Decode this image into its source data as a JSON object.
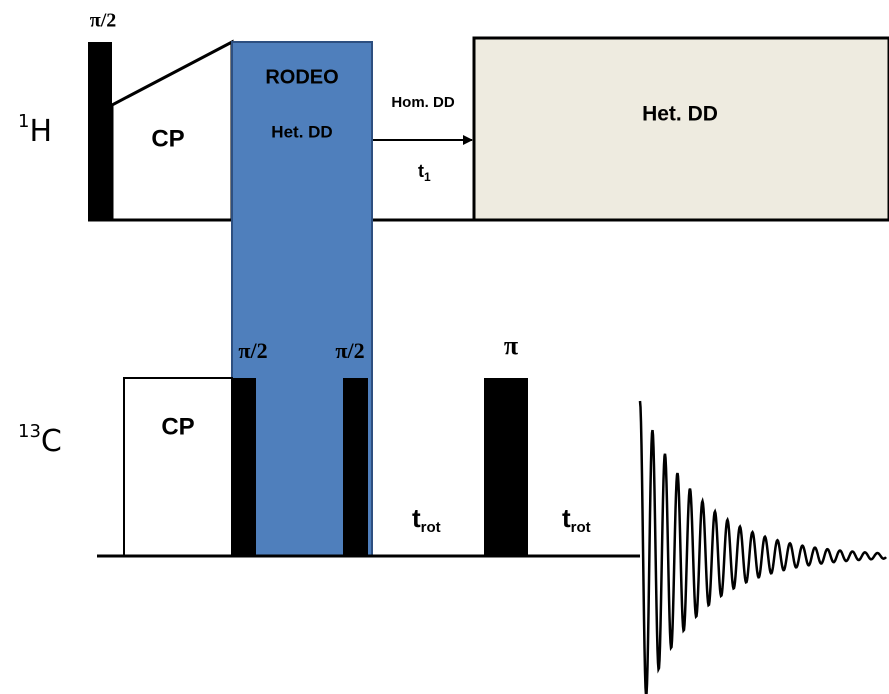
{
  "channels": [
    {
      "label_sup": "1",
      "label": "H"
    },
    {
      "label_sup": "13",
      "label": "C"
    }
  ],
  "proton": {
    "pulse": "π/2",
    "cp": "CP",
    "rodeo": "RODEO",
    "rodeo_sub": "Het. DD",
    "hom_dd": "Hom. DD",
    "t1": "t",
    "t1_sub": "1",
    "het_dd": "Het. DD"
  },
  "carbon": {
    "cp": "CP",
    "pulse_1": "π/2",
    "pulse_2": "π/2",
    "pi": "π",
    "delay_1": "t",
    "delay_1_sub": "rot",
    "delay_2": "t",
    "delay_2_sub": "rot"
  }
}
